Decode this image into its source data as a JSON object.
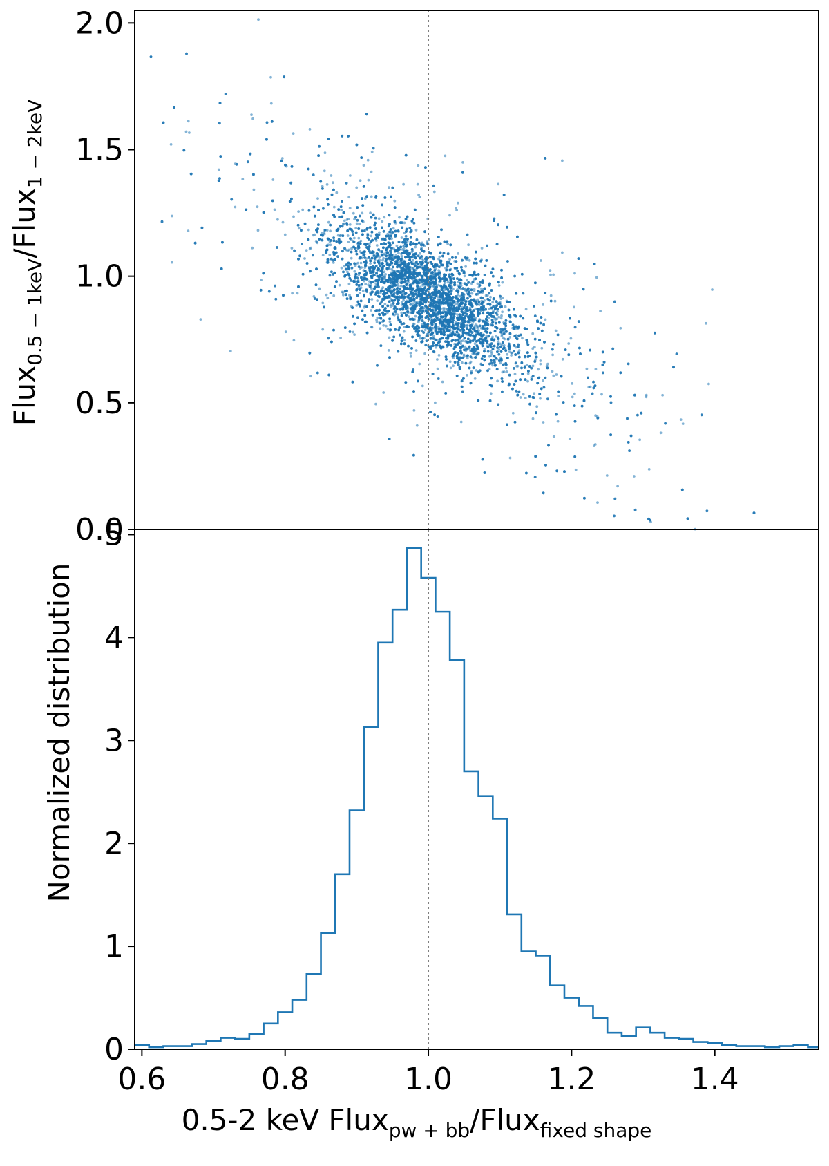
{
  "colors": {
    "series": "#1f77b4",
    "axis": "#000000",
    "reference_line": "#808080",
    "background": "#ffffff"
  },
  "chart_data": [
    {
      "type": "scatter",
      "panel": "top",
      "title": "",
      "ylabel": {
        "base": "Flux",
        "sub1": "0.5 − 1keV",
        "mid": "/Flux",
        "sub2": "1 − 2keV"
      },
      "xlim": [
        0.59,
        1.545
      ],
      "ylim": [
        0,
        2.05
      ],
      "yticks": [
        {
          "value": 0.0,
          "label": "0.0"
        },
        {
          "value": 0.5,
          "label": "0.5"
        },
        {
          "value": 1.0,
          "label": "1.0"
        },
        {
          "value": 1.5,
          "label": "1.5"
        },
        {
          "value": 2.0,
          "label": "2.0"
        }
      ],
      "trend": {
        "description": "dense anticorrelated cloud",
        "x_range": [
          0.6,
          1.54
        ],
        "center_at": {
          "x": 1.0,
          "y": 0.92
        },
        "slope": -1.55,
        "n_points": 9000
      },
      "reference_line_x": 1.0,
      "grid": false
    },
    {
      "type": "histogram",
      "panel": "bottom",
      "title": "",
      "xlabel": {
        "base": "0.5-2 keV Flux",
        "sub1": "pw + bb",
        "mid": "/Flux",
        "sub2": "fixed shape"
      },
      "ylabel": "Normalized distribution",
      "xlim": [
        0.59,
        1.545
      ],
      "ylim": [
        0,
        5.05
      ],
      "xticks": [
        {
          "value": 0.6,
          "label": "0.6"
        },
        {
          "value": 0.8,
          "label": "0.8"
        },
        {
          "value": 1.0,
          "label": "1.0"
        },
        {
          "value": 1.2,
          "label": "1.2"
        },
        {
          "value": 1.4,
          "label": "1.4"
        }
      ],
      "yticks": [
        {
          "value": 0,
          "label": "0"
        },
        {
          "value": 1,
          "label": "1"
        },
        {
          "value": 2,
          "label": "2"
        },
        {
          "value": 3,
          "label": "3"
        },
        {
          "value": 4,
          "label": "4"
        },
        {
          "value": 5,
          "label": "5"
        }
      ],
      "bin_edges": [
        0.59,
        0.61,
        0.63,
        0.65,
        0.67,
        0.69,
        0.71,
        0.73,
        0.75,
        0.77,
        0.79,
        0.81,
        0.83,
        0.85,
        0.87,
        0.89,
        0.91,
        0.93,
        0.95,
        0.97,
        0.99,
        1.01,
        1.03,
        1.05,
        1.07,
        1.09,
        1.11,
        1.13,
        1.15,
        1.17,
        1.19,
        1.21,
        1.23,
        1.25,
        1.27,
        1.29,
        1.31,
        1.33,
        1.35,
        1.37,
        1.39,
        1.41,
        1.43,
        1.45,
        1.47,
        1.49,
        1.51,
        1.53,
        1.545
      ],
      "values": [
        0.04,
        0.02,
        0.03,
        0.03,
        0.05,
        0.08,
        0.11,
        0.1,
        0.15,
        0.25,
        0.36,
        0.48,
        0.73,
        1.13,
        1.7,
        2.32,
        3.13,
        3.95,
        4.27,
        4.87,
        4.58,
        4.25,
        3.78,
        2.7,
        2.46,
        2.24,
        1.31,
        0.95,
        0.91,
        0.62,
        0.5,
        0.42,
        0.3,
        0.16,
        0.13,
        0.21,
        0.16,
        0.11,
        0.1,
        0.07,
        0.06,
        0.04,
        0.03,
        0.03,
        0.02,
        0.03,
        0.04,
        0.02
      ],
      "reference_line_x": 1.0,
      "grid": false
    }
  ]
}
